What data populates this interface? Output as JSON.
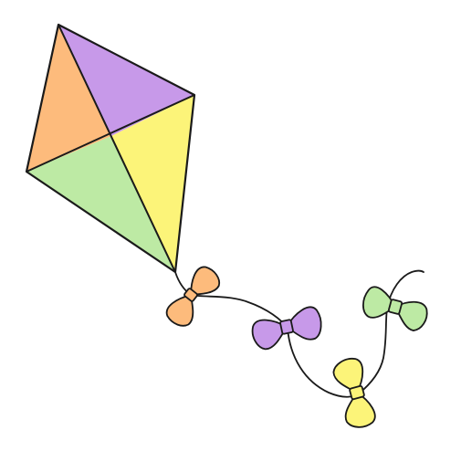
{
  "illustration": {
    "colors": {
      "background": "#ffffff",
      "outline": "#1a1a1a",
      "purple": "#c799e9",
      "orange": "#fdbb7c",
      "yellow": "#fcf479",
      "green": "#bdeaa4"
    },
    "kite_panels": [
      "purple",
      "orange",
      "yellow",
      "green"
    ],
    "tail_bows": [
      "orange",
      "purple",
      "yellow",
      "green"
    ]
  }
}
